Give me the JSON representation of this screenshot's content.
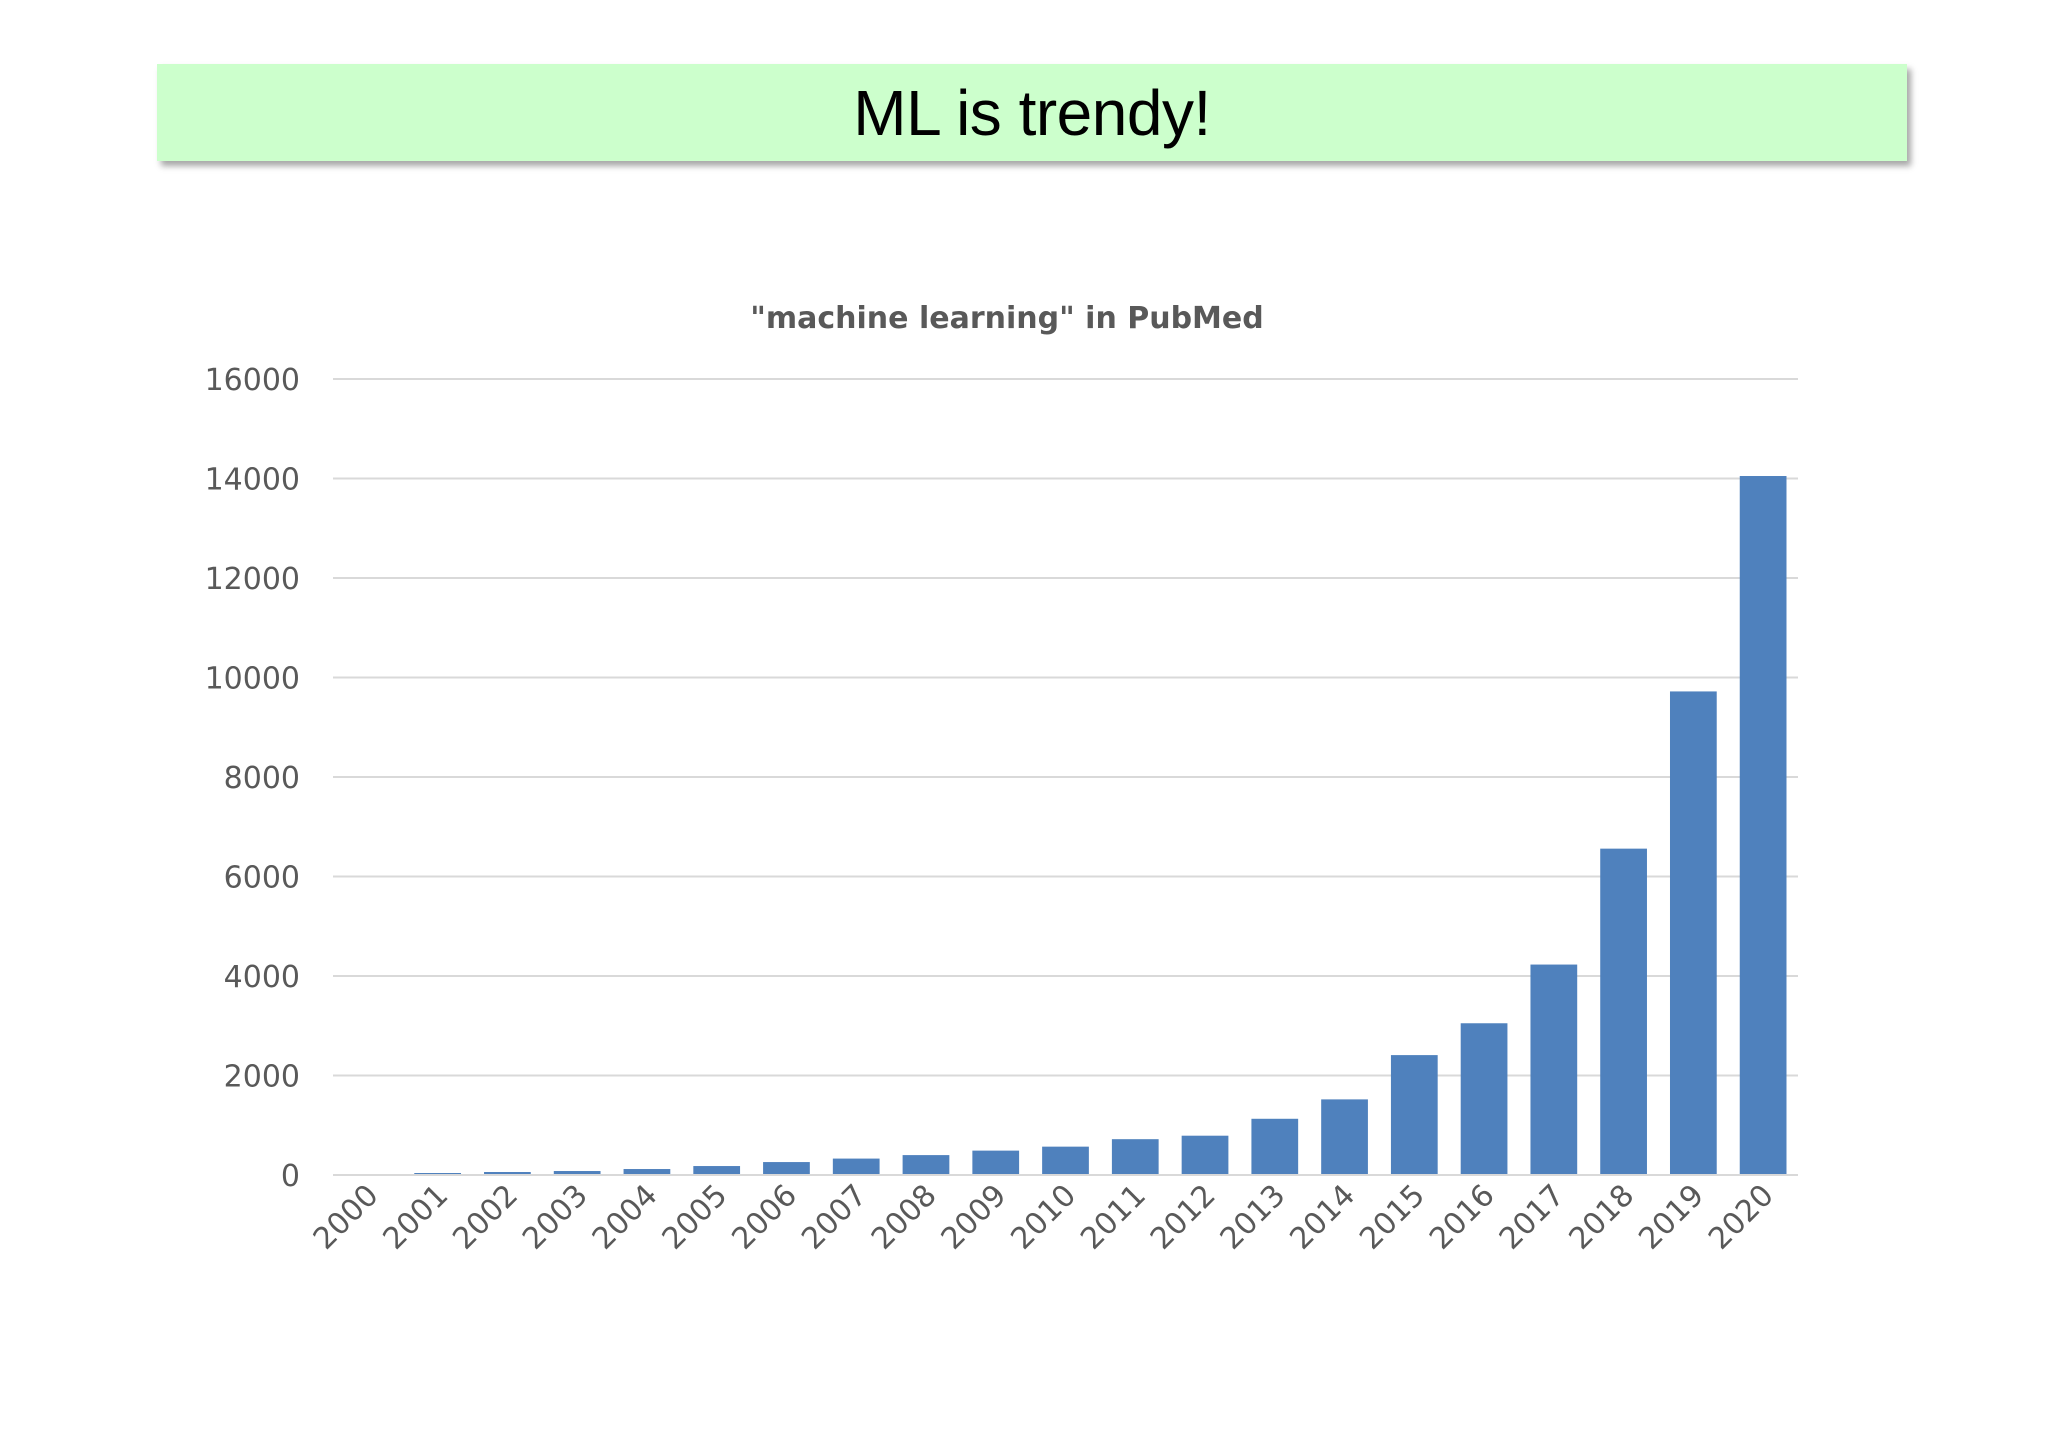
{
  "slide": {
    "title": "ML is trendy!"
  },
  "colors": {
    "banner_background": "#ccffcc",
    "bar_fill": "#4f81bd",
    "gridline": "#d9d9d9",
    "text": "#595959"
  },
  "chart_data": {
    "type": "bar",
    "title": "\"machine learning\" in PubMed",
    "xlabel": "",
    "ylabel": "",
    "categories": [
      "2000",
      "2001",
      "2002",
      "2003",
      "2004",
      "2005",
      "2006",
      "2007",
      "2008",
      "2009",
      "2010",
      "2011",
      "2012",
      "2013",
      "2014",
      "2015",
      "2016",
      "2017",
      "2018",
      "2019",
      "2020"
    ],
    "values": [
      20,
      40,
      60,
      80,
      120,
      180,
      260,
      330,
      400,
      490,
      570,
      720,
      790,
      1130,
      1520,
      2410,
      3050,
      4230,
      6560,
      9720,
      14050
    ],
    "ylim": [
      0,
      16000
    ],
    "yticks": [
      0,
      2000,
      4000,
      6000,
      8000,
      10000,
      12000,
      14000,
      16000
    ],
    "grid": true,
    "legend": "none",
    "x_tick_rotation": "diagonal"
  }
}
